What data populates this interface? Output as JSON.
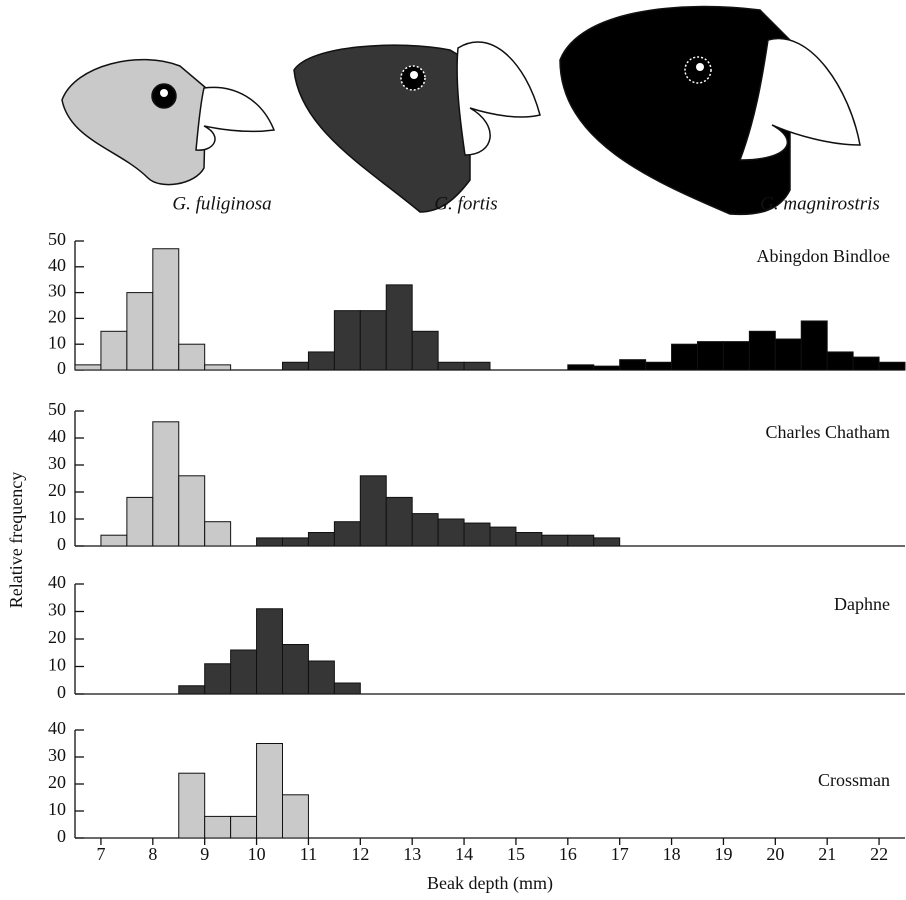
{
  "ylabel": "Relative frequency",
  "chart_data": [
    {
      "type": "histogram",
      "title": "Abingdon Bindloe",
      "xlim": [
        6.5,
        22.5
      ],
      "ylim": [
        0,
        50
      ],
      "yticks": [
        0,
        10,
        20,
        30,
        40,
        50
      ],
      "series": [
        {
          "name": "G. fuliginosa",
          "color": "#c9c9c9",
          "bins": [
            6.5,
            7,
            7.5,
            8,
            8.5,
            9,
            9.5
          ],
          "values": [
            2,
            15,
            30,
            47,
            10,
            2
          ]
        },
        {
          "name": "G. fortis",
          "color": "#363636",
          "bins": [
            10.5,
            11,
            11.5,
            12,
            12.5,
            13,
            13.5,
            14,
            14.5
          ],
          "values": [
            3,
            7,
            23,
            23,
            33,
            15,
            3,
            3
          ]
        },
        {
          "name": "G. magnirostris",
          "color": "#000000",
          "bins": [
            16,
            16.5,
            17,
            17.5,
            18,
            18.5,
            19,
            19.5,
            20,
            20.5,
            21,
            21.5,
            22,
            22.5
          ],
          "values": [
            2,
            1.5,
            4,
            3,
            10,
            11,
            11,
            15,
            12,
            19,
            7,
            5,
            3
          ]
        }
      ]
    },
    {
      "type": "histogram",
      "title": "Charles Chatham",
      "xlim": [
        6.5,
        22.5
      ],
      "ylim": [
        0,
        50
      ],
      "yticks": [
        0,
        10,
        20,
        30,
        40,
        50
      ],
      "series": [
        {
          "color": "#c9c9c9",
          "bins": [
            7,
            7.5,
            8,
            8.5,
            9,
            9.5
          ],
          "values": [
            4,
            18,
            46,
            26,
            9
          ]
        },
        {
          "color": "#363636",
          "bins": [
            10,
            10.5,
            11,
            11.5,
            12,
            12.5,
            13,
            13.5,
            14,
            14.5,
            15,
            15.5,
            16,
            16.5,
            17
          ],
          "values": [
            3,
            3,
            5,
            9,
            26,
            18,
            12,
            10,
            8.5,
            7,
            5,
            4,
            4,
            3
          ]
        }
      ]
    },
    {
      "type": "histogram",
      "title": "Daphne",
      "xlim": [
        6.5,
        22.5
      ],
      "ylim": [
        0,
        40
      ],
      "yticks": [
        0,
        10,
        20,
        30,
        40
      ],
      "series": [
        {
          "color": "#363636",
          "bins": [
            8.5,
            9,
            9.5,
            10,
            10.5,
            11,
            11.5,
            12
          ],
          "values": [
            3,
            11,
            16,
            31,
            18,
            12,
            4
          ]
        }
      ]
    },
    {
      "type": "histogram",
      "title": "Crossman",
      "xlim": [
        6.5,
        22.5
      ],
      "ylim": [
        0,
        40
      ],
      "yticks": [
        0,
        10,
        20,
        30,
        40
      ],
      "xticks": [
        7,
        8,
        9,
        10,
        11,
        12,
        13,
        14,
        15,
        16,
        17,
        18,
        19,
        20,
        21,
        22
      ],
      "xlabel": "Beak depth (mm)",
      "series": [
        {
          "color": "#c9c9c9",
          "bins": [
            8.5,
            9,
            9.5,
            10,
            10.5,
            11
          ],
          "values": [
            24,
            8,
            8,
            35,
            16
          ]
        }
      ]
    }
  ]
}
